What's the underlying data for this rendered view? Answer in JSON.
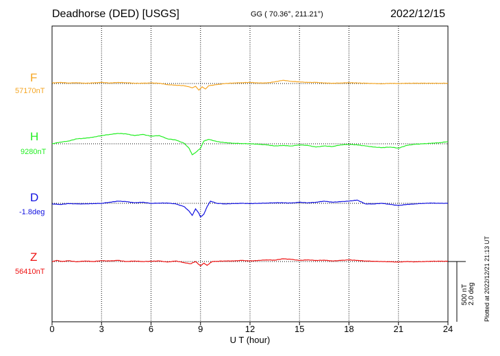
{
  "header": {
    "station": "Deadhorse (DED)  [USGS]",
    "coords": "GG ( 70.36°, 211.21°)",
    "date": "2022/12/15"
  },
  "scale": {
    "line1": "500 nT",
    "line2": "2.0 deg"
  },
  "credit": "Plotted at 2022/12/21 21:13 UT",
  "chart_data": {
    "type": "line",
    "title": "Deadhorse (DED)  [USGS]",
    "xlabel": "U T (hour)",
    "xlim": [
      0,
      24
    ],
    "xticks": [
      0,
      3,
      6,
      9,
      12,
      15,
      18,
      21,
      24
    ],
    "xtick_labels": [
      "0",
      "3",
      "6",
      "9",
      "12",
      "15",
      "18",
      "21",
      "24"
    ],
    "grid": true,
    "units_note": "Values are deviations from each channel's baseline, in nT (D in nT-equivalent, 500 nT = 2.0 deg)",
    "series": [
      {
        "name": "F",
        "baseline_label": "57170nT",
        "color": "#f5a623",
        "points": [
          [
            0,
            10
          ],
          [
            0.5,
            20
          ],
          [
            1,
            10
          ],
          [
            1.5,
            15
          ],
          [
            2,
            5
          ],
          [
            2.5,
            10
          ],
          [
            3,
            20
          ],
          [
            3.5,
            10
          ],
          [
            4,
            20
          ],
          [
            4.5,
            15
          ],
          [
            5,
            5
          ],
          [
            5.5,
            5
          ],
          [
            6,
            10
          ],
          [
            6.5,
            5
          ],
          [
            7,
            -20
          ],
          [
            7.5,
            -30
          ],
          [
            8,
            -40
          ],
          [
            8.3,
            -60
          ],
          [
            8.5,
            -80
          ],
          [
            8.7,
            -50
          ],
          [
            8.9,
            -120
          ],
          [
            9.1,
            -60
          ],
          [
            9.3,
            -100
          ],
          [
            9.5,
            -40
          ],
          [
            10,
            -20
          ],
          [
            10.5,
            0
          ],
          [
            11,
            10
          ],
          [
            11.5,
            15
          ],
          [
            12,
            20
          ],
          [
            12.5,
            10
          ],
          [
            13,
            10
          ],
          [
            13.5,
            30
          ],
          [
            14,
            60
          ],
          [
            14.5,
            40
          ],
          [
            15,
            30
          ],
          [
            15.5,
            20
          ],
          [
            16,
            20
          ],
          [
            16.5,
            10
          ],
          [
            17,
            5
          ],
          [
            17.5,
            10
          ],
          [
            18,
            15
          ],
          [
            18.5,
            10
          ],
          [
            19,
            5
          ],
          [
            19.5,
            0
          ],
          [
            20,
            -5
          ],
          [
            20.5,
            5
          ],
          [
            21,
            0
          ],
          [
            21.5,
            5
          ],
          [
            22,
            5
          ],
          [
            22.5,
            5
          ],
          [
            23,
            5
          ],
          [
            23.5,
            5
          ],
          [
            24,
            5
          ]
        ]
      },
      {
        "name": "H",
        "baseline_label": "9280nT",
        "color": "#22ee22",
        "points": [
          [
            0,
            0
          ],
          [
            0.5,
            30
          ],
          [
            1,
            50
          ],
          [
            1.5,
            90
          ],
          [
            2,
            100
          ],
          [
            2.5,
            120
          ],
          [
            3,
            150
          ],
          [
            3.5,
            170
          ],
          [
            4,
            190
          ],
          [
            4.5,
            180
          ],
          [
            5,
            150
          ],
          [
            5.5,
            170
          ],
          [
            6,
            140
          ],
          [
            6.5,
            150
          ],
          [
            7,
            90
          ],
          [
            7.5,
            70
          ],
          [
            8,
            10
          ],
          [
            8.3,
            -80
          ],
          [
            8.5,
            -200
          ],
          [
            8.7,
            -160
          ],
          [
            9,
            -80
          ],
          [
            9.2,
            50
          ],
          [
            9.5,
            80
          ],
          [
            10,
            40
          ],
          [
            10.5,
            20
          ],
          [
            11,
            10
          ],
          [
            11.5,
            5
          ],
          [
            12,
            0
          ],
          [
            12.5,
            -10
          ],
          [
            13,
            -20
          ],
          [
            13.5,
            -40
          ],
          [
            14,
            -30
          ],
          [
            14.5,
            -40
          ],
          [
            15,
            -20
          ],
          [
            15.5,
            -30
          ],
          [
            16,
            -60
          ],
          [
            16.5,
            -40
          ],
          [
            17,
            -50
          ],
          [
            17.5,
            -20
          ],
          [
            18,
            -10
          ],
          [
            18.5,
            -20
          ],
          [
            19,
            -40
          ],
          [
            19.5,
            -60
          ],
          [
            20,
            -70
          ],
          [
            20.5,
            -60
          ],
          [
            21,
            -80
          ],
          [
            21.5,
            -30
          ],
          [
            22,
            -10
          ],
          [
            22.5,
            0
          ],
          [
            23,
            10
          ],
          [
            23.5,
            20
          ],
          [
            24,
            40
          ]
        ]
      },
      {
        "name": "D",
        "baseline_label": "-1.8deg",
        "color": "#1010e0",
        "points": [
          [
            0,
            -10
          ],
          [
            0.5,
            -20
          ],
          [
            1,
            -5
          ],
          [
            1.5,
            -10
          ],
          [
            2,
            -10
          ],
          [
            2.5,
            -5
          ],
          [
            3,
            0
          ],
          [
            3.5,
            20
          ],
          [
            4,
            40
          ],
          [
            4.5,
            30
          ],
          [
            5,
            10
          ],
          [
            5.5,
            20
          ],
          [
            6,
            0
          ],
          [
            6.5,
            5
          ],
          [
            7,
            5
          ],
          [
            7.5,
            -10
          ],
          [
            8,
            -60
          ],
          [
            8.3,
            -140
          ],
          [
            8.5,
            -220
          ],
          [
            8.7,
            -100
          ],
          [
            8.9,
            -180
          ],
          [
            9,
            -250
          ],
          [
            9.2,
            -200
          ],
          [
            9.4,
            -60
          ],
          [
            9.6,
            40
          ],
          [
            10,
            0
          ],
          [
            10.5,
            -10
          ],
          [
            11,
            -5
          ],
          [
            11.5,
            0
          ],
          [
            12,
            -5
          ],
          [
            12.5,
            0
          ],
          [
            13,
            5
          ],
          [
            13.5,
            10
          ],
          [
            14,
            10
          ],
          [
            14.5,
            5
          ],
          [
            15,
            20
          ],
          [
            15.5,
            10
          ],
          [
            16,
            20
          ],
          [
            16.5,
            40
          ],
          [
            17,
            20
          ],
          [
            17.5,
            30
          ],
          [
            18,
            40
          ],
          [
            18.5,
            60
          ],
          [
            19,
            -10
          ],
          [
            19.5,
            -10
          ],
          [
            20,
            0
          ],
          [
            20.5,
            -20
          ],
          [
            21,
            -40
          ],
          [
            21.5,
            -20
          ],
          [
            22,
            -10
          ],
          [
            22.5,
            0
          ],
          [
            23,
            5
          ],
          [
            23.5,
            0
          ],
          [
            24,
            0
          ]
        ]
      },
      {
        "name": "Z",
        "baseline_label": "56410nT",
        "color": "#ee1111",
        "points": [
          [
            0,
            0
          ],
          [
            0.3,
            20
          ],
          [
            0.6,
            0
          ],
          [
            1,
            15
          ],
          [
            1.5,
            -5
          ],
          [
            2,
            10
          ],
          [
            2.5,
            0
          ],
          [
            3,
            15
          ],
          [
            3.5,
            10
          ],
          [
            4,
            20
          ],
          [
            4.5,
            0
          ],
          [
            5,
            10
          ],
          [
            5.5,
            0
          ],
          [
            6,
            5
          ],
          [
            6.5,
            10
          ],
          [
            7,
            -10
          ],
          [
            7.5,
            10
          ],
          [
            8,
            -20
          ],
          [
            8.4,
            -40
          ],
          [
            8.7,
            0
          ],
          [
            9,
            -80
          ],
          [
            9.2,
            -30
          ],
          [
            9.4,
            -70
          ],
          [
            9.7,
            0
          ],
          [
            10,
            5
          ],
          [
            10.5,
            10
          ],
          [
            11,
            10
          ],
          [
            11.5,
            20
          ],
          [
            12,
            10
          ],
          [
            12.5,
            20
          ],
          [
            13,
            30
          ],
          [
            13.5,
            25
          ],
          [
            14,
            50
          ],
          [
            14.5,
            40
          ],
          [
            15,
            20
          ],
          [
            15.5,
            30
          ],
          [
            16,
            20
          ],
          [
            16.5,
            25
          ],
          [
            17,
            10
          ],
          [
            17.5,
            20
          ],
          [
            18,
            30
          ],
          [
            18.5,
            20
          ],
          [
            19,
            10
          ],
          [
            19.5,
            5
          ],
          [
            20,
            0
          ],
          [
            20.5,
            -5
          ],
          [
            21,
            -10
          ],
          [
            21.5,
            0
          ],
          [
            22,
            -5
          ],
          [
            22.5,
            0
          ],
          [
            23,
            5
          ],
          [
            23.5,
            5
          ],
          [
            24,
            5
          ]
        ]
      }
    ]
  }
}
